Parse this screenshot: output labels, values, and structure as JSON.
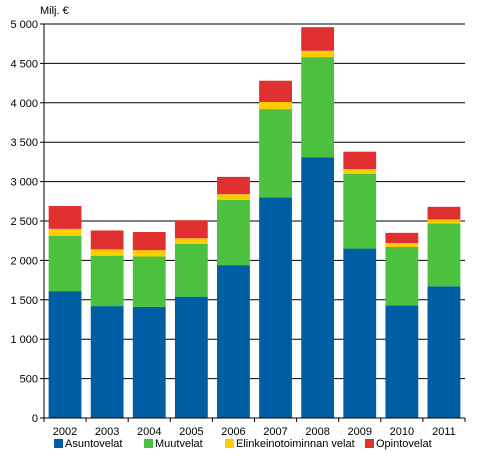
{
  "chart_data": {
    "type": "bar",
    "stacked": true,
    "ylabel": "Milj. €",
    "ylim": [
      0,
      5000
    ],
    "ytick_step": 500,
    "yticks": [
      "0",
      "500",
      "1 000",
      "1 500",
      "2 000",
      "2 500",
      "3 000",
      "3 500",
      "4 000",
      "4 500",
      "5 000"
    ],
    "grid": true,
    "legend_position": "bottom",
    "categories": [
      "2002",
      "2003",
      "2004",
      "2005",
      "2006",
      "2007",
      "2008",
      "2009",
      "2010",
      "2011"
    ],
    "series": [
      {
        "name": "Asuntovelat",
        "color": "#005fa4",
        "values": [
          1610,
          1420,
          1410,
          1540,
          1940,
          2800,
          3310,
          2150,
          1430,
          1670
        ]
      },
      {
        "name": "Muutvelat",
        "color": "#4cc13f",
        "values": [
          700,
          640,
          640,
          670,
          830,
          1120,
          1270,
          950,
          740,
          800
        ]
      },
      {
        "name": "Elinkeinotoiminnan velat",
        "color": "#ffcc00",
        "values": [
          90,
          80,
          80,
          70,
          70,
          90,
          80,
          60,
          50,
          50
        ]
      },
      {
        "name": "Opintovelat",
        "color": "#e03030",
        "values": [
          290,
          240,
          230,
          230,
          220,
          270,
          300,
          220,
          130,
          160
        ]
      }
    ]
  }
}
